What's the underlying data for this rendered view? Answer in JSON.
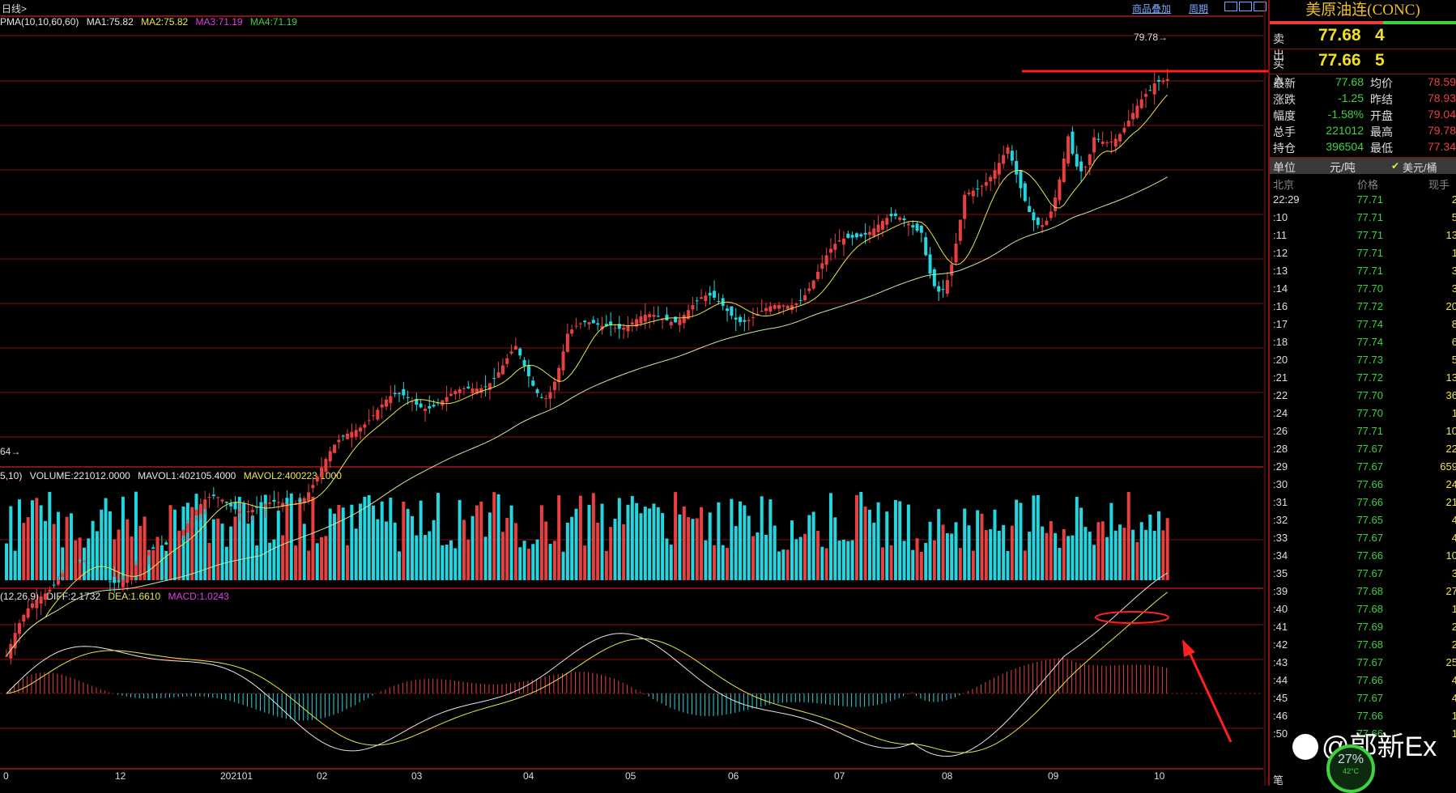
{
  "topbar": {
    "period_label": "日线>",
    "link_overlay": "商品叠加",
    "link_period": "周期"
  },
  "main_indicator": {
    "name": "PMA(10,10,60,60)",
    "ma1": "MA1:75.82",
    "ma2": "MA2:75.82",
    "ma3": "MA3:71.19",
    "ma4": "MA4:71.19",
    "high_marker": "79.78",
    "low_marker": "64"
  },
  "volume_indicator": {
    "name": "5,10)",
    "volume": "VOLUME:221012.0000",
    "mavol1": "MAVOL1:402105.4000",
    "mavol2": "MAVOL2:400223.1000"
  },
  "macd_indicator": {
    "name": "(12,26,9)",
    "diff": "DIFF:2.1732",
    "dea": "DEA:1.6610",
    "macd": "MACD:1.0243"
  },
  "x_axis": {
    "labels": [
      "0",
      "12",
      "202101",
      "02",
      "03",
      "04",
      "05",
      "06",
      "07",
      "08",
      "09",
      "10"
    ]
  },
  "colors": {
    "up": "#e84040",
    "down": "#23d6e0",
    "ma_fast": "#e8e64a",
    "ma_slow": "#c8e8a0",
    "grid": "#8a1010",
    "annotation": "#ff2020"
  },
  "panel": {
    "title": "美原油连(CONC)",
    "ask_label": "卖出",
    "ask_price": "77.68",
    "ask_vol": "4",
    "bid_label": "买入",
    "bid_price": "77.66",
    "bid_vol": "5",
    "stats": [
      {
        "l1": "最新",
        "v1": "77.68",
        "l2": "均价",
        "v2": "78.59"
      },
      {
        "l1": "涨跌",
        "v1": "-1.25",
        "l2": "昨结",
        "v2": "78.93"
      },
      {
        "l1": "幅度",
        "v1": "-1.58%",
        "l2": "开盘",
        "v2": "79.04"
      },
      {
        "l1": "总手",
        "v1": "221012",
        "l2": "最高",
        "v2": "79.78"
      },
      {
        "l1": "持仓",
        "v1": "396504",
        "l2": "最低",
        "v2": "77.34"
      }
    ],
    "unit_label": "单位",
    "unit_value": "元/吨",
    "unit_option": "美元/桶",
    "tick_header": {
      "time": "北京",
      "price": "价格",
      "vol": "现手"
    },
    "ticks": [
      {
        "t": "22:29",
        "p": "77.71",
        "v": "2"
      },
      {
        "t": ":10",
        "p": "77.71",
        "v": "5"
      },
      {
        "t": ":11",
        "p": "77.71",
        "v": "13"
      },
      {
        "t": ":12",
        "p": "77.71",
        "v": "1"
      },
      {
        "t": ":13",
        "p": "77.71",
        "v": "3"
      },
      {
        "t": ":14",
        "p": "77.70",
        "v": "3"
      },
      {
        "t": ":16",
        "p": "77.72",
        "v": "20"
      },
      {
        "t": ":17",
        "p": "77.74",
        "v": "8"
      },
      {
        "t": ":18",
        "p": "77.74",
        "v": "6"
      },
      {
        "t": ":20",
        "p": "77.73",
        "v": "5"
      },
      {
        "t": ":21",
        "p": "77.72",
        "v": "13"
      },
      {
        "t": ":22",
        "p": "77.70",
        "v": "36"
      },
      {
        "t": ":24",
        "p": "77.70",
        "v": "1"
      },
      {
        "t": ":26",
        "p": "77.71",
        "v": "10"
      },
      {
        "t": ":28",
        "p": "77.67",
        "v": "22"
      },
      {
        "t": ":29",
        "p": "77.67",
        "v": "659"
      },
      {
        "t": ":30",
        "p": "77.66",
        "v": "24"
      },
      {
        "t": ":31",
        "p": "77.66",
        "v": "21"
      },
      {
        "t": ":32",
        "p": "77.65",
        "v": "4"
      },
      {
        "t": ":33",
        "p": "77.67",
        "v": "4"
      },
      {
        "t": ":34",
        "p": "77.66",
        "v": "10"
      },
      {
        "t": ":35",
        "p": "77.67",
        "v": "3"
      },
      {
        "t": ":39",
        "p": "77.68",
        "v": "27"
      },
      {
        "t": ":40",
        "p": "77.68",
        "v": "1"
      },
      {
        "t": ":41",
        "p": "77.69",
        "v": "2"
      },
      {
        "t": ":42",
        "p": "77.68",
        "v": "2"
      },
      {
        "t": ":43",
        "p": "77.67",
        "v": "25"
      },
      {
        "t": ":44",
        "p": "77.66",
        "v": "4"
      },
      {
        "t": ":45",
        "p": "77.67",
        "v": "4"
      },
      {
        "t": ":46",
        "p": "77.66",
        "v": "1"
      },
      {
        "t": ":50",
        "p": "77.66",
        "v": "1"
      }
    ],
    "footer_tab": "笔"
  },
  "watermark": "@郭新Ex",
  "gauge": {
    "percent": "27%",
    "temp": "42°C"
  },
  "chart_data": {
    "type": "candlestick",
    "instrument": "美原油连(CONC)",
    "x_labels": [
      "0",
      "12",
      "202101",
      "02",
      "03",
      "04",
      "05",
      "06",
      "07",
      "08",
      "09",
      "10"
    ],
    "monthly_close_approx": [
      {
        "x": "12",
        "y": 48.5
      },
      {
        "x": "202101",
        "y": 52.2
      },
      {
        "x": "02",
        "y": 61.5
      },
      {
        "x": "03",
        "y": 62.0
      },
      {
        "x": "04",
        "y": 63.5
      },
      {
        "x": "05",
        "y": 66.3
      },
      {
        "x": "06",
        "y": 73.5
      },
      {
        "x": "07",
        "y": 73.9
      },
      {
        "x": "08",
        "y": 68.5
      },
      {
        "x": "09",
        "y": 75.0
      },
      {
        "x": "10",
        "y": 77.68
      }
    ],
    "high": 79.78,
    "low": "64"
  }
}
